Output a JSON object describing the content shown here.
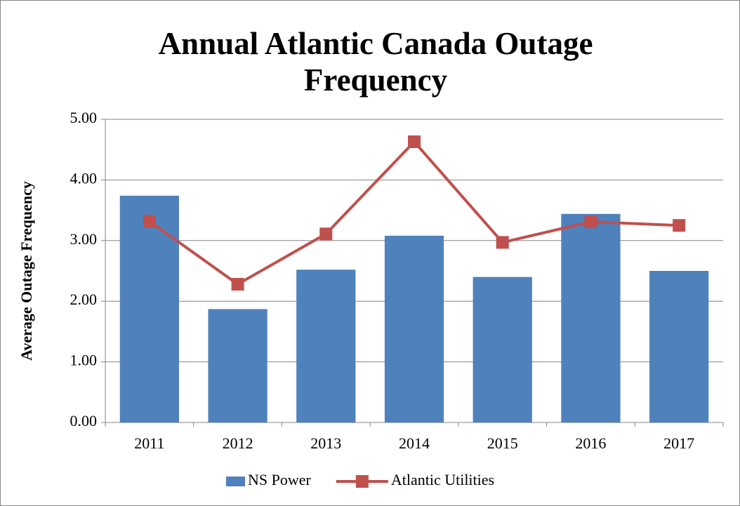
{
  "chart_data": {
    "type": "bar_line",
    "title": "Annual Atlantic Canada Outage Frequency",
    "y_label": "Average Outage Frequency",
    "categories": [
      "2011",
      "2012",
      "2013",
      "2014",
      "2015",
      "2016",
      "2017"
    ],
    "series": [
      {
        "name": "NS Power",
        "type": "bar",
        "color": "#4f81bd",
        "values": [
          3.74,
          1.87,
          2.52,
          3.08,
          2.4,
          3.44,
          2.5
        ]
      },
      {
        "name": "Atlantic Utilities",
        "type": "line",
        "color": "#c0504d",
        "values": [
          3.32,
          2.28,
          3.11,
          4.63,
          2.97,
          3.31,
          3.25
        ]
      }
    ],
    "ylim": [
      0,
      5
    ],
    "yticks": [
      {
        "value": 0,
        "label": "0.00"
      },
      {
        "value": 1,
        "label": "1.00"
      },
      {
        "value": 2,
        "label": "2.00"
      },
      {
        "value": 3,
        "label": "3.00"
      },
      {
        "value": 4,
        "label": "4.00"
      },
      {
        "value": 5,
        "label": "5.00"
      }
    ],
    "grid": true,
    "legend": "bottom"
  }
}
